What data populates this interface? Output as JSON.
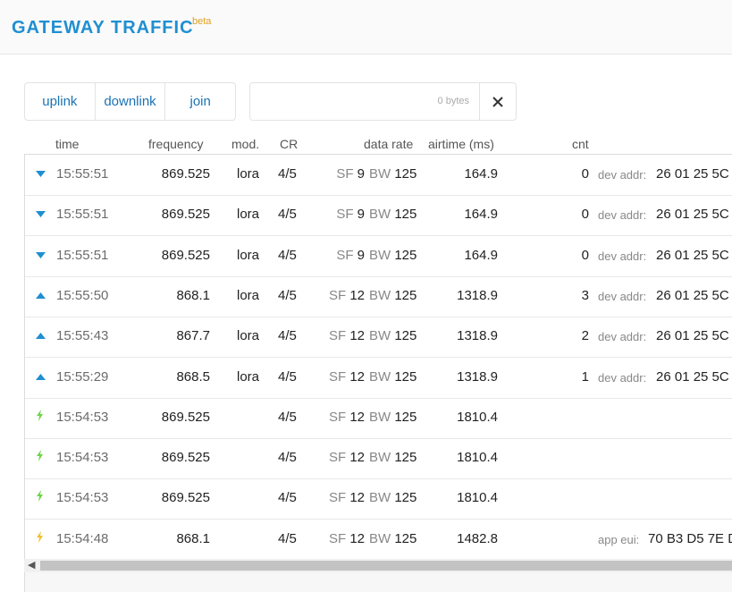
{
  "header": {
    "title": "GATEWAY TRAFFIC",
    "badge": "beta"
  },
  "tabs": [
    {
      "label": "uplink"
    },
    {
      "label": "downlink"
    },
    {
      "label": "join"
    }
  ],
  "filter": {
    "bytes_label": "0 bytes",
    "clear_icon": "close-icon"
  },
  "columns": {
    "time": "time",
    "frequency": "frequency",
    "mod": "mod.",
    "cr": "CR",
    "data_rate": "data rate",
    "airtime": "airtime (ms)",
    "cnt": "cnt"
  },
  "labels": {
    "sf": "SF",
    "bw": "BW",
    "dev_addr": "dev addr:",
    "app_eui": "app eui:"
  },
  "colors": {
    "downlink": "#1f8fd1",
    "uplink": "#1f8fd1",
    "join_accept": "#6fd44a",
    "join_request": "#f0c030"
  },
  "rows": [
    {
      "icon": "downlink-arrow-icon",
      "time": "15:55:51",
      "freq": "869.525",
      "mod": "lora",
      "cr": "4/5",
      "sf": "9",
      "bw": "125",
      "air": "164.9",
      "cnt": "0",
      "kv_label": "dev addr:",
      "kv_value": "26 01 25 5C"
    },
    {
      "icon": "downlink-arrow-icon",
      "time": "15:55:51",
      "freq": "869.525",
      "mod": "lora",
      "cr": "4/5",
      "sf": "9",
      "bw": "125",
      "air": "164.9",
      "cnt": "0",
      "kv_label": "dev addr:",
      "kv_value": "26 01 25 5C"
    },
    {
      "icon": "downlink-arrow-icon",
      "time": "15:55:51",
      "freq": "869.525",
      "mod": "lora",
      "cr": "4/5",
      "sf": "9",
      "bw": "125",
      "air": "164.9",
      "cnt": "0",
      "kv_label": "dev addr:",
      "kv_value": "26 01 25 5C"
    },
    {
      "icon": "uplink-arrow-icon",
      "time": "15:55:50",
      "freq": "868.1",
      "mod": "lora",
      "cr": "4/5",
      "sf": "12",
      "bw": "125",
      "air": "1318.9",
      "cnt": "3",
      "kv_label": "dev addr:",
      "kv_value": "26 01 25 5C"
    },
    {
      "icon": "uplink-arrow-icon",
      "time": "15:55:43",
      "freq": "867.7",
      "mod": "lora",
      "cr": "4/5",
      "sf": "12",
      "bw": "125",
      "air": "1318.9",
      "cnt": "2",
      "kv_label": "dev addr:",
      "kv_value": "26 01 25 5C"
    },
    {
      "icon": "uplink-arrow-icon",
      "time": "15:55:29",
      "freq": "868.5",
      "mod": "lora",
      "cr": "4/5",
      "sf": "12",
      "bw": "125",
      "air": "1318.9",
      "cnt": "1",
      "kv_label": "dev addr:",
      "kv_value": "26 01 25 5C"
    },
    {
      "icon": "join-accept-bolt-icon",
      "time": "15:54:53",
      "freq": "869.525",
      "mod": "",
      "cr": "4/5",
      "sf": "12",
      "bw": "125",
      "air": "1810.4",
      "cnt": "",
      "kv_label": "",
      "kv_value": ""
    },
    {
      "icon": "join-accept-bolt-icon",
      "time": "15:54:53",
      "freq": "869.525",
      "mod": "",
      "cr": "4/5",
      "sf": "12",
      "bw": "125",
      "air": "1810.4",
      "cnt": "",
      "kv_label": "",
      "kv_value": ""
    },
    {
      "icon": "join-accept-bolt-icon",
      "time": "15:54:53",
      "freq": "869.525",
      "mod": "",
      "cr": "4/5",
      "sf": "12",
      "bw": "125",
      "air": "1810.4",
      "cnt": "",
      "kv_label": "",
      "kv_value": ""
    },
    {
      "icon": "join-request-bolt-icon",
      "time": "15:54:48",
      "freq": "868.1",
      "mod": "",
      "cr": "4/5",
      "sf": "12",
      "bw": "125",
      "air": "1482.8",
      "cnt": "",
      "kv_label": "app eui:",
      "kv_value": "70 B3 D5 7E D"
    }
  ]
}
